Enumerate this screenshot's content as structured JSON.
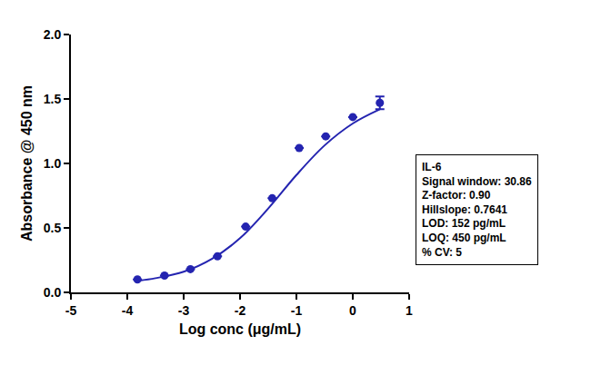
{
  "chart_data": {
    "type": "scatter",
    "x_label": "Log conc (μg/mL)",
    "y_label": "Absorbance @ 450 nm",
    "xlim": [
      -5,
      1
    ],
    "xticks": [
      -5,
      -4,
      -3,
      -2,
      -1,
      0,
      1
    ],
    "ylim": [
      0,
      2.0
    ],
    "yticks": [
      {
        "value": 0,
        "label": "0.0"
      },
      {
        "value": 0.5,
        "label": "0.5"
      },
      {
        "value": 1.0,
        "label": "1.0"
      },
      {
        "value": 1.5,
        "label": "1.5"
      },
      {
        "value": 2.0,
        "label": "2.0"
      }
    ],
    "grid": false,
    "annotation": [
      "IL-6",
      "Signal window: 30.86",
      "Z-factor: 0.90",
      "Hillslope: 0.7641",
      "LOD: 152 pg/mL",
      "LOQ: 450 pg/mL",
      "% CV: 5"
    ],
    "series": [
      {
        "type": "scatter",
        "color": "#2424b0",
        "marker": "circle",
        "x": [
          -3.82,
          -3.34,
          -2.88,
          -2.4,
          -1.9,
          -1.43,
          -0.95,
          -0.48,
          0.0,
          0.48
        ],
        "values": [
          0.1,
          0.13,
          0.18,
          0.28,
          0.51,
          0.73,
          1.12,
          1.21,
          1.36,
          1.47
        ],
        "errors": [
          null,
          null,
          null,
          null,
          null,
          null,
          null,
          null,
          null,
          0.05
        ]
      },
      {
        "type": "line",
        "color": "#2424b0",
        "line_style": "solid",
        "x": [
          -3.8,
          -3.5,
          -3.0,
          -2.5,
          -2.0,
          -1.5,
          -1.0,
          -0.5,
          0.0,
          0.48
        ],
        "values": [
          0.09,
          0.11,
          0.16,
          0.26,
          0.42,
          0.65,
          0.91,
          1.14,
          1.31,
          1.42
        ]
      }
    ]
  }
}
